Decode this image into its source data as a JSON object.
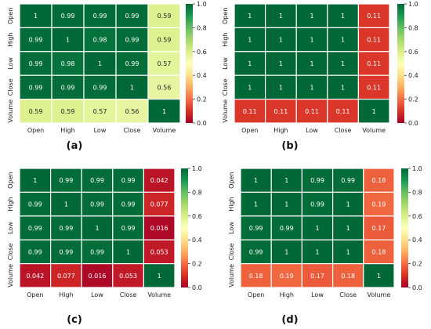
{
  "chart_data": [
    {
      "type": "heatmap",
      "panel_label": "(a)",
      "rows": [
        "Open",
        "High",
        "Low",
        "Close",
        "Volume"
      ],
      "cols": [
        "Open",
        "High",
        "Low",
        "Close",
        "Volume"
      ],
      "values": [
        [
          1,
          0.99,
          0.99,
          0.99,
          0.59
        ],
        [
          0.99,
          1,
          0.98,
          0.99,
          0.59
        ],
        [
          0.99,
          0.98,
          1,
          0.99,
          0.57
        ],
        [
          0.99,
          0.99,
          0.99,
          1,
          0.56
        ],
        [
          0.59,
          0.59,
          0.57,
          0.56,
          1
        ]
      ],
      "labels": [
        [
          "1",
          "0.99",
          "0.99",
          "0.99",
          "0.59"
        ],
        [
          "0.99",
          "1",
          "0.98",
          "0.99",
          "0.59"
        ],
        [
          "0.99",
          "0.98",
          "1",
          "0.99",
          "0.57"
        ],
        [
          "0.99",
          "0.99",
          "0.99",
          "1",
          "0.56"
        ],
        [
          "0.59",
          "0.59",
          "0.57",
          "0.56",
          "1"
        ]
      ],
      "colorbar": {
        "colormap": "RdYlGn",
        "vmin": 0,
        "vmax": 1,
        "ticks": [
          "0.0",
          "0.2",
          "0.4",
          "0.6",
          "0.8",
          "1.0"
        ]
      }
    },
    {
      "type": "heatmap",
      "panel_label": "(b)",
      "rows": [
        "Open",
        "High",
        "Low",
        "Close",
        "Volume"
      ],
      "cols": [
        "Open",
        "High",
        "Low",
        "Close",
        "Volume"
      ],
      "values": [
        [
          1,
          1,
          1,
          1,
          0.11
        ],
        [
          1,
          1,
          1,
          1,
          0.11
        ],
        [
          1,
          1,
          1,
          1,
          0.11
        ],
        [
          1,
          1,
          1,
          1,
          0.11
        ],
        [
          0.11,
          0.11,
          0.11,
          0.11,
          1
        ]
      ],
      "labels": [
        [
          "1",
          "1",
          "1",
          "1",
          "0.11"
        ],
        [
          "1",
          "1",
          "1",
          "1",
          "0.11"
        ],
        [
          "1",
          "1",
          "1",
          "1",
          "0.11"
        ],
        [
          "1",
          "1",
          "1",
          "1",
          "0.11"
        ],
        [
          "0.11",
          "0.11",
          "0.11",
          "0.11",
          "1"
        ]
      ],
      "colorbar": {
        "colormap": "RdYlGn",
        "vmin": 0,
        "vmax": 1,
        "ticks": [
          "0.0",
          "0.2",
          "0.4",
          "0.6",
          "0.8",
          "1.0"
        ]
      }
    },
    {
      "type": "heatmap",
      "panel_label": "(c)",
      "rows": [
        "Open",
        "High",
        "Low",
        "Close",
        "Volume"
      ],
      "cols": [
        "Open",
        "High",
        "Low",
        "Close",
        "Volume"
      ],
      "values": [
        [
          1,
          0.99,
          0.99,
          0.99,
          0.042
        ],
        [
          0.99,
          1,
          0.99,
          0.99,
          0.077
        ],
        [
          0.99,
          0.99,
          1,
          0.99,
          0.016
        ],
        [
          0.99,
          0.99,
          0.99,
          1,
          0.053
        ],
        [
          0.042,
          0.077,
          0.016,
          0.053,
          1
        ]
      ],
      "labels": [
        [
          "1",
          "0.99",
          "0.99",
          "0.99",
          "0.042"
        ],
        [
          "0.99",
          "1",
          "0.99",
          "0.99",
          "0.077"
        ],
        [
          "0.99",
          "0.99",
          "1",
          "0.99",
          "0.016"
        ],
        [
          "0.99",
          "0.99",
          "0.99",
          "1",
          "0.053"
        ],
        [
          "0.042",
          "0.077",
          "0.016",
          "0.053",
          "1"
        ]
      ],
      "colorbar": {
        "colormap": "RdYlGn",
        "vmin": 0,
        "vmax": 1,
        "ticks": [
          "0.0",
          "0.2",
          "0.4",
          "0.6",
          "0.8",
          "1.0"
        ]
      }
    },
    {
      "type": "heatmap",
      "panel_label": "(d)",
      "rows": [
        "Open",
        "High",
        "Low",
        "Close",
        "Volume"
      ],
      "cols": [
        "Open",
        "High",
        "Low",
        "Close",
        "Volume"
      ],
      "values": [
        [
          1,
          1,
          0.99,
          0.99,
          0.18
        ],
        [
          1,
          1,
          0.99,
          1,
          0.19
        ],
        [
          0.99,
          0.99,
          1,
          1,
          0.17
        ],
        [
          0.99,
          1,
          1,
          1,
          0.18
        ],
        [
          0.18,
          0.19,
          0.17,
          0.18,
          1
        ]
      ],
      "labels": [
        [
          "1",
          "1",
          "0.99",
          "0.99",
          "0.18"
        ],
        [
          "1",
          "1",
          "0.99",
          "1",
          "0.19"
        ],
        [
          "0.99",
          "0.99",
          "1",
          "1",
          "0.17"
        ],
        [
          "0.99",
          "1",
          "1",
          "1",
          "0.18"
        ],
        [
          "0.18",
          "0.19",
          "0.17",
          "0.18",
          "1"
        ]
      ],
      "colorbar": {
        "colormap": "RdYlGn",
        "vmin": 0,
        "vmax": 1,
        "ticks": [
          "0.0",
          "0.2",
          "0.4",
          "0.6",
          "0.8",
          "1.0"
        ]
      }
    }
  ],
  "colors": {
    "colormap_stops": [
      "#a50026",
      "#d73027",
      "#f46d43",
      "#fdae61",
      "#fee08b",
      "#ffffbf",
      "#d9ef8b",
      "#a6d96a",
      "#66bd63",
      "#1a9850",
      "#006837"
    ],
    "cell_border": "#ffffff",
    "text_on_dark": "#ffffff",
    "text_on_light": "#222222",
    "tick_text": "#222222"
  }
}
